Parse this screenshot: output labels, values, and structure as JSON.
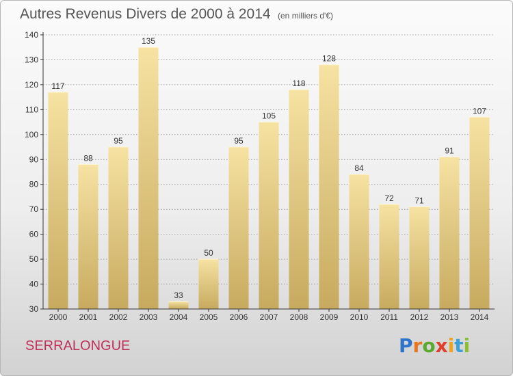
{
  "title": {
    "main": "Autres Revenus Divers de 2000 à 2014",
    "unit": "(en milliers d'€)"
  },
  "commune": "SERRALONGUE",
  "logo": {
    "text": "Proxiti",
    "letters": [
      {
        "char": "P",
        "color": "#2f74c9"
      },
      {
        "char": "r",
        "color": "#e8741c"
      },
      {
        "char": "o",
        "color": "#5aaa2f"
      },
      {
        "char": "x",
        "color": "#e03f2c"
      },
      {
        "char": "i",
        "color": "#f0a21d"
      },
      {
        "char": "t",
        "color": "#3aa0d8"
      },
      {
        "char": "i",
        "color": "#8cbf2f"
      }
    ]
  },
  "colors": {
    "bar_light": "#f6e2a2",
    "bar_dark": "#c7aa5e",
    "grid": "#8a8a8a",
    "axis": "#333333"
  },
  "chart_data": {
    "type": "bar",
    "title": "Autres Revenus Divers de 2000 à 2014",
    "subtitle": "(en milliers d'€)",
    "categories": [
      "2000",
      "2001",
      "2002",
      "2003",
      "2004",
      "2005",
      "2006",
      "2007",
      "2008",
      "2009",
      "2010",
      "2011",
      "2012",
      "2013",
      "2014"
    ],
    "values": [
      117,
      88,
      95,
      135,
      33,
      50,
      95,
      105,
      118,
      128,
      84,
      72,
      71,
      91,
      107
    ],
    "ylim": [
      30,
      140
    ],
    "yticks": [
      30,
      40,
      50,
      60,
      70,
      80,
      90,
      100,
      110,
      120,
      130,
      140
    ],
    "grid": true,
    "data_labels": true
  }
}
